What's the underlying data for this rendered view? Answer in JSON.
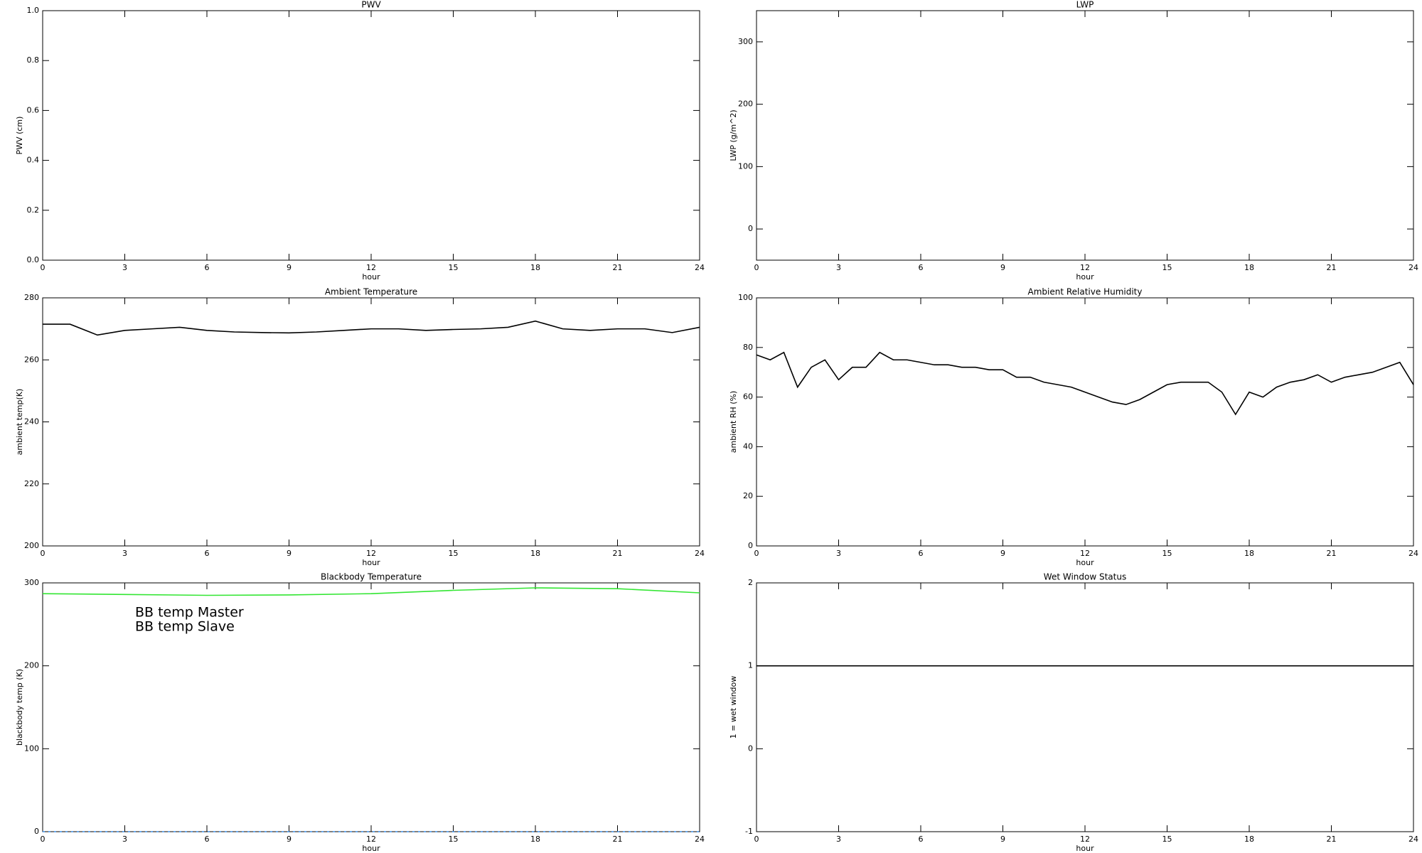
{
  "chart_data": [
    {
      "type": "line",
      "title": "PWV",
      "x_label": "hour",
      "y_label": "PWV (cm)",
      "xlim": [
        0,
        24
      ],
      "xticks": [
        0,
        3,
        6,
        9,
        12,
        15,
        18,
        21,
        24
      ],
      "ylim": [
        0,
        1
      ],
      "yticks": [
        {
          "value": 0,
          "label": "0.0"
        },
        {
          "value": 0.2,
          "label": "0.2"
        },
        {
          "value": 0.4,
          "label": "0.4"
        },
        {
          "value": 0.6,
          "label": "0.6"
        },
        {
          "value": 0.8,
          "label": "0.8"
        },
        {
          "value": 1,
          "label": "1.0"
        }
      ]
    },
    {
      "type": "line",
      "title": "LWP",
      "x_label": "hour",
      "y_label": "LWP (g/m^2)",
      "xlim": [
        0,
        24
      ],
      "xticks": [
        0,
        3,
        6,
        9,
        12,
        15,
        18,
        21,
        24
      ],
      "ylim": [
        -50,
        350
      ],
      "yticks": [
        0,
        100,
        200,
        300
      ]
    },
    {
      "type": "line",
      "title": "Ambient Temperature",
      "x_label": "hour",
      "y_label": "ambient temp(K)",
      "xlim": [
        0,
        24
      ],
      "xticks": [
        0,
        3,
        6,
        9,
        12,
        15,
        18,
        21,
        24
      ],
      "ylim": [
        200,
        280
      ],
      "yticks": [
        200,
        220,
        240,
        260,
        280
      ],
      "x": [
        0,
        1,
        2,
        3,
        4,
        5,
        6,
        7,
        8,
        9,
        10,
        11,
        12,
        13,
        14,
        15,
        16,
        17,
        18,
        19,
        20,
        21,
        22,
        23,
        24
      ],
      "series": [
        {
          "color": "#000000",
          "values": [
            271.5,
            271.5,
            268,
            269.5,
            270,
            270.5,
            269.5,
            269,
            268.8,
            268.7,
            269,
            269.5,
            270,
            270,
            269.5,
            269.8,
            270,
            270.5,
            272.5,
            270,
            269.5,
            270,
            270,
            268.8,
            270.5
          ]
        }
      ]
    },
    {
      "type": "line",
      "title": "Ambient Relative Humidity",
      "x_label": "hour",
      "y_label": "ambient RH (%)",
      "xlim": [
        0,
        24
      ],
      "xticks": [
        0,
        3,
        6,
        9,
        12,
        15,
        18,
        21,
        24
      ],
      "ylim": [
        0,
        100
      ],
      "yticks": [
        0,
        20,
        40,
        60,
        80,
        100
      ],
      "x": [
        0,
        0.5,
        1,
        1.5,
        2,
        2.5,
        3,
        3.5,
        4,
        4.5,
        5,
        5.5,
        6,
        6.5,
        7,
        7.5,
        8,
        8.5,
        9,
        9.5,
        10,
        10.5,
        11,
        11.5,
        12,
        12.5,
        13,
        13.5,
        14,
        14.5,
        15,
        15.5,
        16,
        16.5,
        17,
        17.5,
        18,
        18.5,
        19,
        19.5,
        20,
        20.5,
        21,
        21.5,
        22,
        22.5,
        23,
        23.5,
        24
      ],
      "series": [
        {
          "color": "#000000",
          "values": [
            77,
            75,
            78,
            64,
            72,
            75,
            67,
            72,
            72,
            78,
            75,
            75,
            74,
            73,
            73,
            72,
            72,
            71,
            71,
            68,
            68,
            66,
            65,
            64,
            62,
            60,
            58,
            57,
            59,
            62,
            65,
            66,
            66,
            66,
            62,
            53,
            62,
            60,
            64,
            66,
            67,
            69,
            66,
            68,
            69,
            70,
            72,
            74,
            65
          ]
        }
      ]
    },
    {
      "type": "line",
      "title": "Blackbody Temperature",
      "x_label": "hour",
      "y_label": "blackbody temp (K)",
      "xlim": [
        0,
        24
      ],
      "xticks": [
        0,
        3,
        6,
        9,
        12,
        15,
        18,
        21,
        24
      ],
      "ylim": [
        0,
        300
      ],
      "yticks": [
        0,
        100,
        200,
        300
      ],
      "legend": "upper left",
      "x": [
        0,
        3,
        6,
        9,
        12,
        15,
        18,
        21,
        24
      ],
      "series": [
        {
          "name": "BB temp Master",
          "color": "#3a8ee6",
          "values": [
            0,
            0,
            0,
            0,
            0,
            0,
            0,
            0,
            0
          ]
        },
        {
          "name": "BB temp Slave",
          "color": "#33e633",
          "values": [
            287,
            286,
            285,
            285.5,
            287,
            291,
            294,
            293,
            288
          ]
        }
      ]
    },
    {
      "type": "line",
      "title": "Wet Window Status",
      "x_label": "hour",
      "y_label": "1 = wet window",
      "xlim": [
        0,
        24
      ],
      "xticks": [
        0,
        3,
        6,
        9,
        12,
        15,
        18,
        21,
        24
      ],
      "ylim": [
        -1,
        2
      ],
      "yticks": [
        -1,
        0,
        1,
        2
      ],
      "x": [
        0,
        24
      ],
      "series": [
        {
          "color": "#000000",
          "values": [
            1,
            1
          ]
        }
      ]
    }
  ]
}
